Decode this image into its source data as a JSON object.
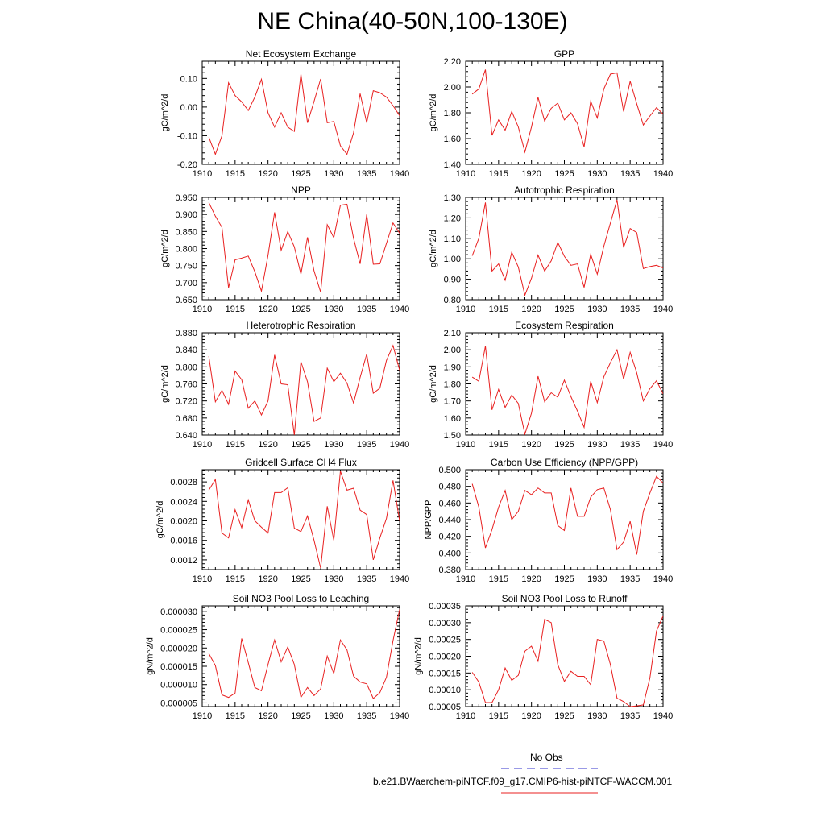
{
  "page": {
    "title": "NE China(40-50N,100-130E)"
  },
  "legend": {
    "entries": [
      {
        "label": "No Obs",
        "color": "#3333cc",
        "style": "dashed"
      },
      {
        "label": "b.e21.BWaerchem-piNTCF.f09_g17.CMIP6-hist-piNTCF-WACCM.001",
        "color": "#e82020",
        "style": "solid"
      }
    ]
  },
  "colors": {
    "series": "#e82020",
    "obs": "#3333cc"
  },
  "chart_data": [
    {
      "type": "line",
      "title": "Net Ecosystem Exchange",
      "ylabel": "gC/m^2/d",
      "xlim": [
        1910,
        1940
      ],
      "ylim": [
        -0.2,
        0.16
      ],
      "xticks": [
        "1910",
        "1915",
        "1920",
        "1925",
        "1930",
        "1935",
        "1940"
      ],
      "yticks": [
        "-0.20",
        "-0.10",
        "0.00",
        "0.10"
      ],
      "ytick_values": [
        -0.2,
        -0.1,
        0.0,
        0.1
      ],
      "x": [
        1911,
        1912,
        1913,
        1914,
        1915,
        1916,
        1917,
        1918,
        1919,
        1920,
        1921,
        1922,
        1923,
        1924,
        1925,
        1926,
        1927,
        1928,
        1929,
        1930,
        1931,
        1932,
        1933,
        1934,
        1935,
        1936,
        1937,
        1938,
        1939,
        1940
      ],
      "values": [
        -0.105,
        -0.165,
        -0.1,
        0.085,
        0.04,
        0.018,
        -0.012,
        0.035,
        0.097,
        -0.02,
        -0.07,
        -0.02,
        -0.07,
        -0.085,
        0.115,
        -0.055,
        0.02,
        0.098,
        -0.055,
        -0.05,
        -0.135,
        -0.165,
        -0.09,
        0.047,
        -0.055,
        0.057,
        0.05,
        0.035,
        0.005,
        -0.03
      ]
    },
    {
      "type": "line",
      "title": "GPP",
      "ylabel": "gC/m^2/d",
      "xlim": [
        1910,
        1940
      ],
      "ylim": [
        1.4,
        2.2
      ],
      "xticks": [
        "1910",
        "1915",
        "1920",
        "1925",
        "1930",
        "1935",
        "1940"
      ],
      "yticks": [
        "1.40",
        "1.60",
        "1.80",
        "2.00",
        "2.20"
      ],
      "ytick_values": [
        1.4,
        1.6,
        1.8,
        2.0,
        2.2
      ],
      "x": [
        1911,
        1912,
        1913,
        1914,
        1915,
        1916,
        1917,
        1918,
        1919,
        1920,
        1921,
        1922,
        1923,
        1924,
        1925,
        1926,
        1927,
        1928,
        1929,
        1930,
        1931,
        1932,
        1933,
        1934,
        1935,
        1936,
        1937,
        1938,
        1939,
        1940
      ],
      "values": [
        1.945,
        1.985,
        2.135,
        1.625,
        1.745,
        1.665,
        1.81,
        1.69,
        1.495,
        1.69,
        1.92,
        1.735,
        1.835,
        1.875,
        1.745,
        1.8,
        1.715,
        1.535,
        1.89,
        1.76,
        1.985,
        2.1,
        2.11,
        1.81,
        2.045,
        1.87,
        1.705,
        1.775,
        1.84,
        1.79
      ]
    },
    {
      "type": "line",
      "title": "NPP",
      "ylabel": "gC/m^2/d",
      "xlim": [
        1910,
        1940
      ],
      "ylim": [
        0.65,
        0.95
      ],
      "xticks": [
        "1910",
        "1915",
        "1920",
        "1925",
        "1930",
        "1935",
        "1940"
      ],
      "yticks": [
        "0.650",
        "0.700",
        "0.750",
        "0.800",
        "0.850",
        "0.900",
        "0.950"
      ],
      "ytick_values": [
        0.65,
        0.7,
        0.75,
        0.8,
        0.85,
        0.9,
        0.95
      ],
      "x": [
        1911,
        1912,
        1913,
        1914,
        1915,
        1916,
        1917,
        1918,
        1919,
        1920,
        1921,
        1922,
        1923,
        1924,
        1925,
        1926,
        1927,
        1928,
        1929,
        1930,
        1931,
        1932,
        1933,
        1934,
        1935,
        1936,
        1937,
        1938,
        1939,
        1940
      ],
      "values": [
        0.935,
        0.895,
        0.862,
        0.685,
        0.767,
        0.772,
        0.778,
        0.732,
        0.675,
        0.78,
        0.906,
        0.795,
        0.85,
        0.805,
        0.725,
        0.833,
        0.734,
        0.672,
        0.87,
        0.832,
        0.927,
        0.93,
        0.83,
        0.755,
        0.9,
        0.754,
        0.755,
        0.815,
        0.875,
        0.845
      ]
    },
    {
      "type": "line",
      "title": "Autotrophic Respiration",
      "ylabel": "gC/m^2/d",
      "xlim": [
        1910,
        1940
      ],
      "ylim": [
        0.8,
        1.3
      ],
      "xticks": [
        "1910",
        "1915",
        "1920",
        "1925",
        "1930",
        "1935",
        "1940"
      ],
      "yticks": [
        "0.80",
        "0.90",
        "1.00",
        "1.10",
        "1.20",
        "1.30"
      ],
      "ytick_values": [
        0.8,
        0.9,
        1.0,
        1.1,
        1.2,
        1.3
      ],
      "x": [
        1911,
        1912,
        1913,
        1914,
        1915,
        1916,
        1917,
        1918,
        1919,
        1920,
        1921,
        1922,
        1923,
        1924,
        1925,
        1926,
        1927,
        1928,
        1929,
        1930,
        1931,
        1932,
        1933,
        1934,
        1935,
        1936,
        1937,
        1938,
        1939,
        1940
      ],
      "values": [
        1.015,
        1.1,
        1.275,
        0.94,
        0.975,
        0.895,
        1.032,
        0.96,
        0.822,
        0.905,
        1.018,
        0.94,
        0.99,
        1.08,
        1.012,
        0.968,
        0.975,
        0.86,
        1.022,
        0.925,
        1.062,
        1.175,
        1.288,
        1.055,
        1.148,
        1.128,
        0.952,
        0.962,
        0.968,
        0.955
      ]
    },
    {
      "type": "line",
      "title": "Heterotrophic Respiration",
      "ylabel": "gC/m^2/d",
      "xlim": [
        1910,
        1940
      ],
      "ylim": [
        0.64,
        0.88
      ],
      "xticks": [
        "1910",
        "1915",
        "1920",
        "1925",
        "1930",
        "1935",
        "1940"
      ],
      "yticks": [
        "0.640",
        "0.680",
        "0.720",
        "0.760",
        "0.800",
        "0.840",
        "0.880"
      ],
      "ytick_values": [
        0.64,
        0.68,
        0.72,
        0.76,
        0.8,
        0.84,
        0.88
      ],
      "x": [
        1911,
        1912,
        1913,
        1914,
        1915,
        1916,
        1917,
        1918,
        1919,
        1920,
        1921,
        1922,
        1923,
        1924,
        1925,
        1926,
        1927,
        1928,
        1929,
        1930,
        1931,
        1932,
        1933,
        1934,
        1935,
        1936,
        1937,
        1938,
        1939,
        1940
      ],
      "values": [
        0.825,
        0.718,
        0.745,
        0.712,
        0.79,
        0.77,
        0.703,
        0.72,
        0.687,
        0.72,
        0.828,
        0.76,
        0.758,
        0.64,
        0.812,
        0.765,
        0.672,
        0.68,
        0.797,
        0.765,
        0.785,
        0.762,
        0.715,
        0.775,
        0.83,
        0.738,
        0.75,
        0.815,
        0.85,
        0.792
      ]
    },
    {
      "type": "line",
      "title": "Ecosystem Respiration",
      "ylabel": "gC/m^2/d",
      "xlim": [
        1910,
        1940
      ],
      "ylim": [
        1.5,
        2.1
      ],
      "xticks": [
        "1910",
        "1915",
        "1920",
        "1925",
        "1930",
        "1935",
        "1940"
      ],
      "yticks": [
        "1.50",
        "1.60",
        "1.70",
        "1.80",
        "1.90",
        "2.00",
        "2.10"
      ],
      "ytick_values": [
        1.5,
        1.6,
        1.7,
        1.8,
        1.9,
        2.0,
        2.1
      ],
      "x": [
        1911,
        1912,
        1913,
        1914,
        1915,
        1916,
        1917,
        1918,
        1919,
        1920,
        1921,
        1922,
        1923,
        1924,
        1925,
        1926,
        1927,
        1928,
        1929,
        1930,
        1931,
        1932,
        1933,
        1934,
        1935,
        1936,
        1937,
        1938,
        1939,
        1940
      ],
      "values": [
        1.84,
        1.815,
        2.022,
        1.648,
        1.768,
        1.662,
        1.735,
        1.685,
        1.505,
        1.628,
        1.845,
        1.695,
        1.748,
        1.722,
        1.822,
        1.725,
        1.64,
        1.545,
        1.815,
        1.69,
        1.842,
        1.925,
        2.0,
        1.828,
        1.985,
        1.865,
        1.7,
        1.772,
        1.818,
        1.742
      ]
    },
    {
      "type": "line",
      "title": "Gridcell Surface CH4 Flux",
      "ylabel": "gC/m^2/d",
      "xlim": [
        1910,
        1940
      ],
      "ylim": [
        0.001,
        0.00305
      ],
      "xticks": [
        "1910",
        "1915",
        "1920",
        "1925",
        "1930",
        "1935",
        "1940"
      ],
      "yticks": [
        "0.0012",
        "0.0016",
        "0.0020",
        "0.0024",
        "0.0028"
      ],
      "ytick_values": [
        0.0012,
        0.0016,
        0.002,
        0.0024,
        0.0028
      ],
      "x": [
        1911,
        1912,
        1913,
        1914,
        1915,
        1916,
        1917,
        1918,
        1919,
        1920,
        1921,
        1922,
        1923,
        1924,
        1925,
        1926,
        1927,
        1928,
        1929,
        1930,
        1931,
        1932,
        1933,
        1934,
        1935,
        1936,
        1937,
        1938,
        1939,
        1940
      ],
      "values": [
        0.00263,
        0.00285,
        0.00175,
        0.00165,
        0.00223,
        0.00186,
        0.00243,
        0.002,
        0.00187,
        0.00175,
        0.00258,
        0.00258,
        0.00268,
        0.00185,
        0.00178,
        0.0021,
        0.0016,
        0.00103,
        0.0023,
        0.0016,
        0.00302,
        0.00263,
        0.00267,
        0.00222,
        0.00213,
        0.0012,
        0.00165,
        0.00205,
        0.00283,
        0.002
      ]
    },
    {
      "type": "line",
      "title": "Carbon Use Efficiency (NPP/GPP)",
      "ylabel": "NPP/GPP",
      "xlim": [
        1910,
        1940
      ],
      "ylim": [
        0.38,
        0.5
      ],
      "xticks": [
        "1910",
        "1915",
        "1920",
        "1925",
        "1930",
        "1935",
        "1940"
      ],
      "yticks": [
        "0.380",
        "0.400",
        "0.420",
        "0.440",
        "0.460",
        "0.480",
        "0.500"
      ],
      "ytick_values": [
        0.38,
        0.4,
        0.42,
        0.44,
        0.46,
        0.48,
        0.5
      ],
      "x": [
        1911,
        1912,
        1913,
        1914,
        1915,
        1916,
        1917,
        1918,
        1919,
        1920,
        1921,
        1922,
        1923,
        1924,
        1925,
        1926,
        1927,
        1928,
        1929,
        1930,
        1931,
        1932,
        1933,
        1934,
        1935,
        1936,
        1937,
        1938,
        1939,
        1940
      ],
      "values": [
        0.483,
        0.455,
        0.406,
        0.428,
        0.455,
        0.475,
        0.44,
        0.45,
        0.475,
        0.47,
        0.478,
        0.472,
        0.472,
        0.433,
        0.427,
        0.478,
        0.444,
        0.444,
        0.467,
        0.476,
        0.478,
        0.452,
        0.404,
        0.413,
        0.438,
        0.398,
        0.45,
        0.472,
        0.492,
        0.484
      ]
    },
    {
      "type": "line",
      "title": "Soil NO3 Pool Loss to Leaching",
      "ylabel": "gN/m^2/d",
      "xlim": [
        1910,
        1940
      ],
      "ylim": [
        4e-06,
        3.15e-05
      ],
      "xticks": [
        "1910",
        "1915",
        "1920",
        "1925",
        "1930",
        "1935",
        "1940"
      ],
      "yticks": [
        "0.000005",
        "0.000010",
        "0.000015",
        "0.000020",
        "0.000025",
        "0.000030"
      ],
      "ytick_values": [
        5e-06,
        1e-05,
        1.5e-05,
        2e-05,
        2.5e-05,
        3e-05
      ],
      "x": [
        1911,
        1912,
        1913,
        1914,
        1915,
        1916,
        1917,
        1918,
        1919,
        1920,
        1921,
        1922,
        1923,
        1924,
        1925,
        1926,
        1927,
        1928,
        1929,
        1930,
        1931,
        1932,
        1933,
        1934,
        1935,
        1936,
        1937,
        1938,
        1939,
        1940
      ],
      "values": [
        1.85e-05,
        1.52e-05,
        7.2e-06,
        6.5e-06,
        7.7e-06,
        2.26e-05,
        1.6e-05,
        9.2e-06,
        8.3e-06,
        1.55e-05,
        2.22e-05,
        1.62e-05,
        2.03e-05,
        1.55e-05,
        6.5e-06,
        9.2e-06,
        7e-06,
        8.8e-06,
        1.78e-05,
        1.3e-05,
        2.22e-05,
        1.95e-05,
        1.23e-05,
        1.07e-05,
        1.02e-05,
        6.2e-06,
        7.8e-06,
        1.2e-05,
        2.2e-05,
        3.05e-05
      ]
    },
    {
      "type": "line",
      "title": "Soil NO3 Pool Loss to Runoff",
      "ylabel": "gN/m^2/d",
      "xlim": [
        1910,
        1940
      ],
      "ylim": [
        5e-05,
        0.00035
      ],
      "xticks": [
        "1910",
        "1915",
        "1920",
        "1925",
        "1930",
        "1935",
        "1940"
      ],
      "yticks": [
        "0.00005",
        "0.00010",
        "0.00015",
        "0.00020",
        "0.00025",
        "0.00030",
        "0.00035"
      ],
      "ytick_values": [
        5e-05,
        0.0001,
        0.00015,
        0.0002,
        0.00025,
        0.0003,
        0.00035
      ],
      "x": [
        1911,
        1912,
        1913,
        1914,
        1915,
        1916,
        1917,
        1918,
        1919,
        1920,
        1921,
        1922,
        1923,
        1924,
        1925,
        1926,
        1927,
        1928,
        1929,
        1930,
        1931,
        1932,
        1933,
        1934,
        1935,
        1936,
        1937,
        1938,
        1939,
        1940
      ],
      "values": [
        0.000152,
        0.000123,
        6.2e-05,
        6.2e-05,
        0.0001,
        0.000165,
        0.000128,
        0.000143,
        0.000215,
        0.00023,
        0.000185,
        0.00031,
        0.0003,
        0.000175,
        0.000125,
        0.000155,
        0.00014,
        0.00014,
        0.000115,
        0.00025,
        0.000245,
        0.000175,
        7.5e-05,
        6.5e-05,
        5e-05,
        5.2e-05,
        5.5e-05,
        0.000135,
        0.000275,
        0.00032
      ]
    }
  ]
}
